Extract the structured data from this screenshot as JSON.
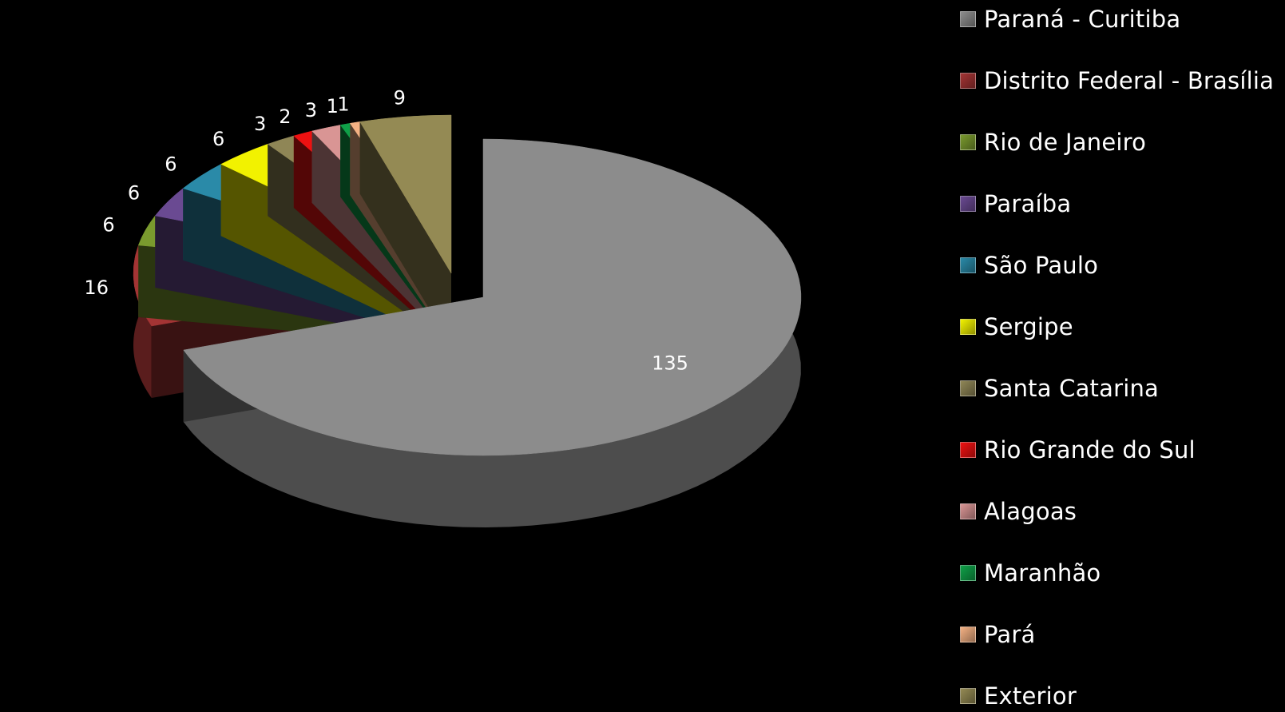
{
  "chart_data": {
    "type": "pie",
    "title": "",
    "legend_position": "right",
    "series": [
      {
        "label": "Paraná - Curitiba",
        "value": 135,
        "color": "#8c8c8c"
      },
      {
        "label": "Distrito Federal - Brasília",
        "value": 16,
        "color": "#a33434"
      },
      {
        "label": "Rio de Janeiro",
        "value": 6,
        "color": "#7a9a2e"
      },
      {
        "label": "Paraíba",
        "value": 6,
        "color": "#6a4a92"
      },
      {
        "label": "São Paulo",
        "value": 6,
        "color": "#2a8aa8"
      },
      {
        "label": "Sergipe",
        "value": 6,
        "color": "#f2f200"
      },
      {
        "label": "Santa Catarina",
        "value": 3,
        "color": "#8f8656"
      },
      {
        "label": "Rio Grande do Sul",
        "value": 2,
        "color": "#ee1111"
      },
      {
        "label": "Alagoas",
        "value": 3,
        "color": "#d99594"
      },
      {
        "label": "Maranhão",
        "value": 1,
        "color": "#0fa048"
      },
      {
        "label": "Pará",
        "value": 1,
        "color": "#f4b183"
      },
      {
        "label": "Exterior",
        "value": 9,
        "color": "#948a54"
      }
    ]
  }
}
